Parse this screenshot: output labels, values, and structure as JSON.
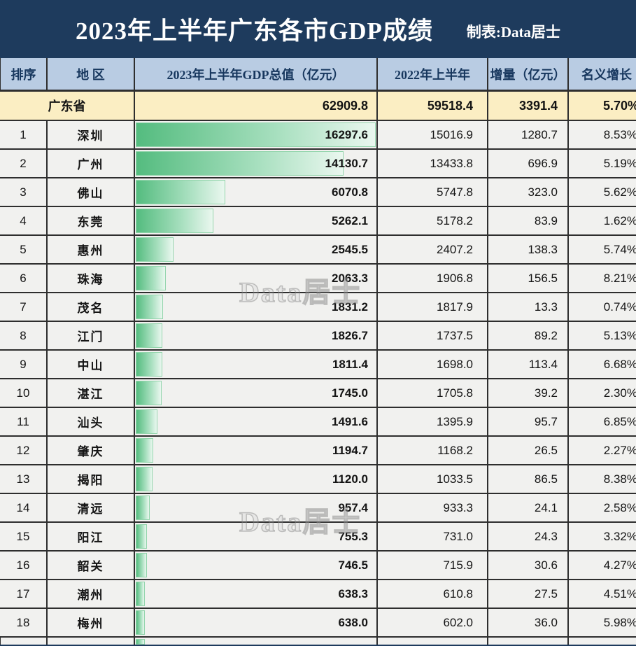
{
  "title": {
    "text": "2023年上半年广东各市GDP成绩",
    "credit": "制表:Data居士"
  },
  "watermark": {
    "text": "Data居士"
  },
  "header": {
    "columns": [
      "排序",
      "地  区",
      "2023年上半年GDP总值（亿元）",
      "2022年上半年",
      "增量（亿元）",
      "名义增长"
    ]
  },
  "province": {
    "region": "广东省",
    "gdp_2023": "62909.8",
    "gdp_2022": "59518.4",
    "delta": "3391.4",
    "growth": "5.70%"
  },
  "rows": [
    {
      "rank": "1",
      "city": "深圳",
      "gdp_2023": "16297.6",
      "gdp_2022": "15016.9",
      "delta": "1280.7",
      "growth": "8.53%"
    },
    {
      "rank": "2",
      "city": "广州",
      "gdp_2023": "14130.7",
      "gdp_2022": "13433.8",
      "delta": "696.9",
      "growth": "5.19%"
    },
    {
      "rank": "3",
      "city": "佛山",
      "gdp_2023": "6070.8",
      "gdp_2022": "5747.8",
      "delta": "323.0",
      "growth": "5.62%"
    },
    {
      "rank": "4",
      "city": "东莞",
      "gdp_2023": "5262.1",
      "gdp_2022": "5178.2",
      "delta": "83.9",
      "growth": "1.62%"
    },
    {
      "rank": "5",
      "city": "惠州",
      "gdp_2023": "2545.5",
      "gdp_2022": "2407.2",
      "delta": "138.3",
      "growth": "5.74%"
    },
    {
      "rank": "6",
      "city": "珠海",
      "gdp_2023": "2063.3",
      "gdp_2022": "1906.8",
      "delta": "156.5",
      "growth": "8.21%"
    },
    {
      "rank": "7",
      "city": "茂名",
      "gdp_2023": "1831.2",
      "gdp_2022": "1817.9",
      "delta": "13.3",
      "growth": "0.74%"
    },
    {
      "rank": "8",
      "city": "江门",
      "gdp_2023": "1826.7",
      "gdp_2022": "1737.5",
      "delta": "89.2",
      "growth": "5.13%"
    },
    {
      "rank": "9",
      "city": "中山",
      "gdp_2023": "1811.4",
      "gdp_2022": "1698.0",
      "delta": "113.4",
      "growth": "6.68%"
    },
    {
      "rank": "10",
      "city": "湛江",
      "gdp_2023": "1745.0",
      "gdp_2022": "1705.8",
      "delta": "39.2",
      "growth": "2.30%"
    },
    {
      "rank": "11",
      "city": "汕头",
      "gdp_2023": "1491.6",
      "gdp_2022": "1395.9",
      "delta": "95.7",
      "growth": "6.85%"
    },
    {
      "rank": "12",
      "city": "肇庆",
      "gdp_2023": "1194.7",
      "gdp_2022": "1168.2",
      "delta": "26.5",
      "growth": "2.27%"
    },
    {
      "rank": "13",
      "city": "揭阳",
      "gdp_2023": "1120.0",
      "gdp_2022": "1033.5",
      "delta": "86.5",
      "growth": "8.38%"
    },
    {
      "rank": "14",
      "city": "清远",
      "gdp_2023": "957.4",
      "gdp_2022": "933.3",
      "delta": "24.1",
      "growth": "2.58%"
    },
    {
      "rank": "15",
      "city": "阳江",
      "gdp_2023": "755.3",
      "gdp_2022": "731.0",
      "delta": "24.3",
      "growth": "3.32%"
    },
    {
      "rank": "16",
      "city": "韶关",
      "gdp_2023": "746.5",
      "gdp_2022": "715.9",
      "delta": "30.6",
      "growth": "4.27%"
    },
    {
      "rank": "17",
      "city": "潮州",
      "gdp_2023": "638.3",
      "gdp_2022": "610.8",
      "delta": "27.5",
      "growth": "4.51%"
    },
    {
      "rank": "18",
      "city": "梅州",
      "gdp_2023": "638.0",
      "gdp_2022": "602.0",
      "delta": "36.0",
      "growth": "5.98%"
    }
  ],
  "colors": {
    "title_bg": "#1e3b5d",
    "header_bg": "#b9cce3",
    "header_text": "#17375e",
    "province_bg": "#fbeec3",
    "row_bg": "#f1f1ef",
    "border": "#2e2e2e",
    "bar_start": "#54bc7f",
    "bar_end": "#eaf7ef"
  },
  "chart_data": {
    "type": "table",
    "title": "2023年上半年广东各市GDP成绩",
    "credit": "制表:Data居士",
    "columns": [
      "排序",
      "地区",
      "2023年上半年GDP总值（亿元）",
      "2022年上半年",
      "增量（亿元）",
      "名义增长"
    ],
    "bar_column": "2023年上半年GDP总值（亿元）",
    "bar_max": 16297.6,
    "summary_row": [
      "",
      "广东省",
      62909.8,
      59518.4,
      3391.4,
      "5.70%"
    ],
    "rows": [
      [
        1,
        "深圳",
        16297.6,
        15016.9,
        1280.7,
        "8.53%"
      ],
      [
        2,
        "广州",
        14130.7,
        13433.8,
        696.9,
        "5.19%"
      ],
      [
        3,
        "佛山",
        6070.8,
        5747.8,
        323.0,
        "5.62%"
      ],
      [
        4,
        "东莞",
        5262.1,
        5178.2,
        83.9,
        "1.62%"
      ],
      [
        5,
        "惠州",
        2545.5,
        2407.2,
        138.3,
        "5.74%"
      ],
      [
        6,
        "珠海",
        2063.3,
        1906.8,
        156.5,
        "8.21%"
      ],
      [
        7,
        "茂名",
        1831.2,
        1817.9,
        13.3,
        "0.74%"
      ],
      [
        8,
        "江门",
        1826.7,
        1737.5,
        89.2,
        "5.13%"
      ],
      [
        9,
        "中山",
        1811.4,
        1698.0,
        113.4,
        "6.68%"
      ],
      [
        10,
        "湛江",
        1745.0,
        1705.8,
        39.2,
        "2.30%"
      ],
      [
        11,
        "汕头",
        1491.6,
        1395.9,
        95.7,
        "6.85%"
      ],
      [
        12,
        "肇庆",
        1194.7,
        1168.2,
        26.5,
        "2.27%"
      ],
      [
        13,
        "揭阳",
        1120.0,
        1033.5,
        86.5,
        "8.38%"
      ],
      [
        14,
        "清远",
        957.4,
        933.3,
        24.1,
        "2.58%"
      ],
      [
        15,
        "阳江",
        755.3,
        731.0,
        24.3,
        "3.32%"
      ],
      [
        16,
        "韶关",
        746.5,
        715.9,
        30.6,
        "4.27%"
      ],
      [
        17,
        "潮州",
        638.3,
        610.8,
        27.5,
        "4.51%"
      ],
      [
        18,
        "梅州",
        638.0,
        602.0,
        36.0,
        "5.98%"
      ]
    ]
  }
}
